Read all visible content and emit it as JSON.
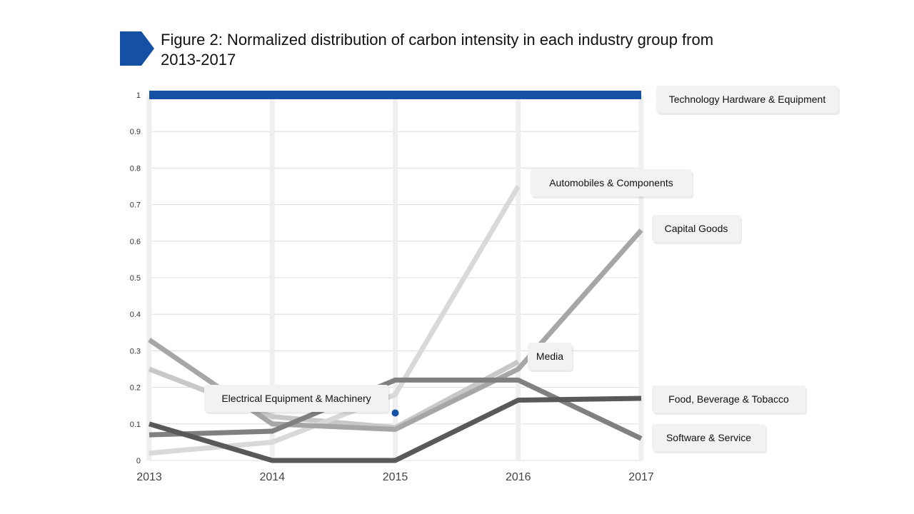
{
  "title": "Figure 2: Normalized distribution of carbon intensity in each industry group from 2013-2017",
  "colors": {
    "accent": "#1450a3",
    "label_bg": "#f2f2f2",
    "grid_vertical": "#efefef",
    "grid_horizontal": "#dcdcdc"
  },
  "chart_data": {
    "type": "line",
    "title": "Figure 2: Normalized distribution of carbon intensity in each industry group from 2013-2017",
    "xlabel": "",
    "ylabel": "",
    "categories": [
      "2013",
      "2014",
      "2015",
      "2016",
      "2017"
    ],
    "yticks": [
      "0",
      "0.1",
      "0.2",
      "0.3",
      "0.4",
      "0.5",
      "0.6",
      "0.7",
      "0.8",
      "0.9",
      "1"
    ],
    "ylim": [
      0,
      1
    ],
    "grid": true,
    "series": [
      {
        "name": "Technology Hardware & Equipment",
        "values": [
          1,
          1,
          1,
          1,
          1
        ],
        "color": "#1450a3"
      },
      {
        "name": "Automobiles & Components",
        "values": [
          0.02,
          0.05,
          0.18,
          0.75,
          null
        ],
        "color": "#d9d9d9"
      },
      {
        "name": "Capital Goods",
        "values": [
          0.33,
          0.1,
          0.085,
          0.25,
          0.63
        ],
        "color": "#a6a6a6"
      },
      {
        "name": "Media",
        "values": [
          0.25,
          0.12,
          0.09,
          0.27,
          null
        ],
        "color": "#c8c8c8"
      },
      {
        "name": "Electrical Equipment & Machinery",
        "values": [
          null,
          null,
          0.13,
          null,
          null
        ],
        "color": "#1450a3",
        "marker": "point"
      },
      {
        "name": "Food, Beverage & Tobacco",
        "values": [
          0.1,
          0.0,
          0.0,
          0.165,
          0.17
        ],
        "color": "#595959"
      },
      {
        "name": "Software & Service",
        "values": [
          0.07,
          0.08,
          0.22,
          0.22,
          0.06
        ],
        "color": "#808080"
      }
    ]
  }
}
